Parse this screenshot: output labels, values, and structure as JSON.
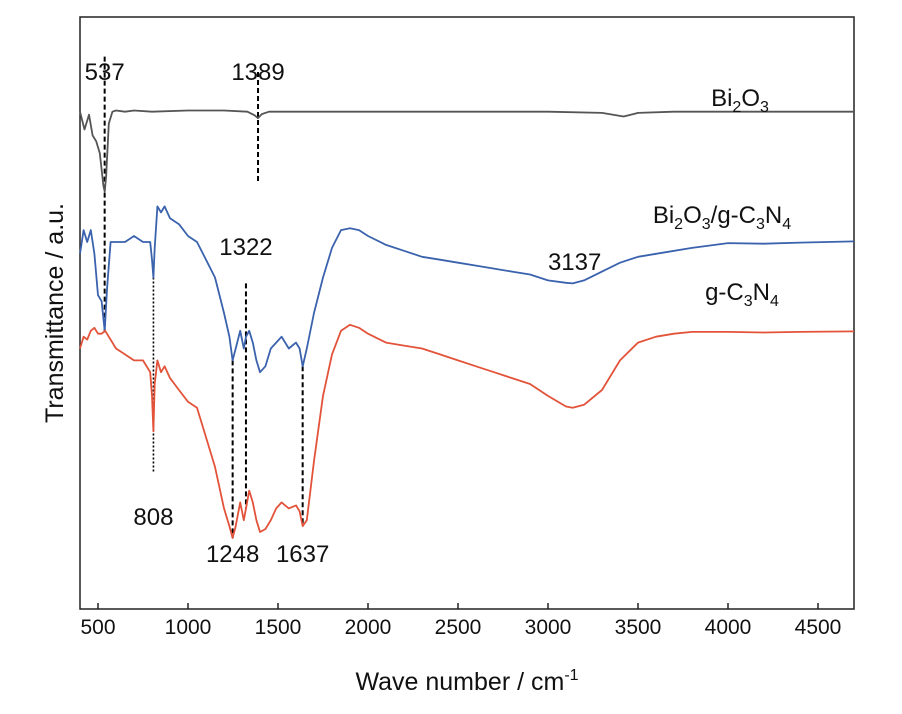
{
  "chart_data": {
    "type": "line",
    "title": "",
    "xlabel": "Wave number / cm",
    "xlabel_superscript": "-1",
    "ylabel": "Transmittance / a.u.",
    "xlim": [
      400,
      4700
    ],
    "ylim": [
      0,
      1
    ],
    "x_ticks": [
      500,
      1000,
      1500,
      2000,
      2500,
      3000,
      3500,
      4000,
      4500
    ],
    "y_ticks_shown": false,
    "grid": false,
    "legend": "none",
    "series": [
      {
        "name": "Bi2O3",
        "label": [
          [
            "Bi",
            ""
          ],
          [
            "2",
            "sub"
          ],
          [
            "O",
            ""
          ],
          [
            "3",
            "sub"
          ]
        ],
        "color": "#555555",
        "points": [
          [
            400,
            0.84
          ],
          [
            425,
            0.81
          ],
          [
            450,
            0.835
          ],
          [
            470,
            0.8
          ],
          [
            490,
            0.79
          ],
          [
            510,
            0.77
          ],
          [
            530,
            0.715
          ],
          [
            537,
            0.705
          ],
          [
            545,
            0.73
          ],
          [
            560,
            0.82
          ],
          [
            580,
            0.84
          ],
          [
            600,
            0.842
          ],
          [
            650,
            0.84
          ],
          [
            700,
            0.842
          ],
          [
            800,
            0.84
          ],
          [
            1000,
            0.842
          ],
          [
            1200,
            0.842
          ],
          [
            1330,
            0.84
          ],
          [
            1370,
            0.834
          ],
          [
            1389,
            0.829
          ],
          [
            1410,
            0.836
          ],
          [
            1450,
            0.84
          ],
          [
            1600,
            0.84
          ],
          [
            2000,
            0.84
          ],
          [
            2500,
            0.84
          ],
          [
            3000,
            0.84
          ],
          [
            3300,
            0.838
          ],
          [
            3420,
            0.832
          ],
          [
            3500,
            0.838
          ],
          [
            3700,
            0.84
          ],
          [
            4000,
            0.84
          ],
          [
            4700,
            0.84
          ]
        ]
      },
      {
        "name": "Bi2O3/g-C3N4",
        "label": [
          [
            "Bi",
            ""
          ],
          [
            "2",
            "sub"
          ],
          [
            "O",
            ""
          ],
          [
            "3",
            "sub"
          ],
          [
            "/g-C",
            ""
          ],
          [
            "3",
            "sub"
          ],
          [
            "N",
            ""
          ],
          [
            "4",
            "sub"
          ]
        ],
        "color": "#3a62ad",
        "points": [
          [
            400,
            0.6
          ],
          [
            420,
            0.64
          ],
          [
            440,
            0.62
          ],
          [
            460,
            0.64
          ],
          [
            480,
            0.6
          ],
          [
            500,
            0.53
          ],
          [
            520,
            0.52
          ],
          [
            537,
            0.47
          ],
          [
            550,
            0.54
          ],
          [
            570,
            0.62
          ],
          [
            600,
            0.62
          ],
          [
            650,
            0.62
          ],
          [
            700,
            0.63
          ],
          [
            750,
            0.62
          ],
          [
            790,
            0.62
          ],
          [
            800,
            0.59
          ],
          [
            808,
            0.56
          ],
          [
            815,
            0.61
          ],
          [
            830,
            0.68
          ],
          [
            850,
            0.67
          ],
          [
            870,
            0.68
          ],
          [
            900,
            0.66
          ],
          [
            950,
            0.65
          ],
          [
            1000,
            0.63
          ],
          [
            1050,
            0.62
          ],
          [
            1100,
            0.59
          ],
          [
            1150,
            0.56
          ],
          [
            1200,
            0.5
          ],
          [
            1230,
            0.46
          ],
          [
            1248,
            0.42
          ],
          [
            1265,
            0.44
          ],
          [
            1290,
            0.47
          ],
          [
            1310,
            0.44
          ],
          [
            1322,
            0.46
          ],
          [
            1340,
            0.47
          ],
          [
            1360,
            0.45
          ],
          [
            1380,
            0.42
          ],
          [
            1400,
            0.4
          ],
          [
            1430,
            0.41
          ],
          [
            1460,
            0.44
          ],
          [
            1490,
            0.45
          ],
          [
            1520,
            0.46
          ],
          [
            1560,
            0.44
          ],
          [
            1600,
            0.45
          ],
          [
            1620,
            0.44
          ],
          [
            1637,
            0.41
          ],
          [
            1660,
            0.44
          ],
          [
            1700,
            0.5
          ],
          [
            1750,
            0.56
          ],
          [
            1800,
            0.61
          ],
          [
            1850,
            0.64
          ],
          [
            1900,
            0.643
          ],
          [
            1950,
            0.64
          ],
          [
            2000,
            0.63
          ],
          [
            2100,
            0.615
          ],
          [
            2200,
            0.605
          ],
          [
            2300,
            0.595
          ],
          [
            2400,
            0.59
          ],
          [
            2500,
            0.585
          ],
          [
            2600,
            0.58
          ],
          [
            2700,
            0.575
          ],
          [
            2800,
            0.57
          ],
          [
            2900,
            0.565
          ],
          [
            3000,
            0.555
          ],
          [
            3100,
            0.551
          ],
          [
            3137,
            0.55
          ],
          [
            3200,
            0.555
          ],
          [
            3300,
            0.57
          ],
          [
            3400,
            0.585
          ],
          [
            3500,
            0.595
          ],
          [
            3600,
            0.6
          ],
          [
            3800,
            0.61
          ],
          [
            4000,
            0.618
          ],
          [
            4200,
            0.617
          ],
          [
            4400,
            0.619
          ],
          [
            4700,
            0.621
          ]
        ]
      },
      {
        "name": "g-C3N4",
        "label": [
          [
            "g-C",
            ""
          ],
          [
            "3",
            "sub"
          ],
          [
            "N",
            ""
          ],
          [
            "4",
            "sub"
          ]
        ],
        "color": "#e2533a",
        "points": [
          [
            400,
            0.44
          ],
          [
            420,
            0.46
          ],
          [
            440,
            0.455
          ],
          [
            460,
            0.47
          ],
          [
            480,
            0.475
          ],
          [
            500,
            0.465
          ],
          [
            520,
            0.465
          ],
          [
            540,
            0.47
          ],
          [
            560,
            0.46
          ],
          [
            600,
            0.44
          ],
          [
            650,
            0.43
          ],
          [
            700,
            0.42
          ],
          [
            750,
            0.42
          ],
          [
            790,
            0.4
          ],
          [
            800,
            0.36
          ],
          [
            808,
            0.3
          ],
          [
            815,
            0.38
          ],
          [
            830,
            0.42
          ],
          [
            850,
            0.4
          ],
          [
            870,
            0.41
          ],
          [
            900,
            0.39
          ],
          [
            950,
            0.37
          ],
          [
            1000,
            0.35
          ],
          [
            1050,
            0.34
          ],
          [
            1100,
            0.29
          ],
          [
            1150,
            0.24
          ],
          [
            1200,
            0.17
          ],
          [
            1230,
            0.14
          ],
          [
            1248,
            0.12
          ],
          [
            1265,
            0.14
          ],
          [
            1290,
            0.18
          ],
          [
            1310,
            0.15
          ],
          [
            1322,
            0.17
          ],
          [
            1340,
            0.2
          ],
          [
            1360,
            0.18
          ],
          [
            1380,
            0.15
          ],
          [
            1400,
            0.13
          ],
          [
            1430,
            0.135
          ],
          [
            1460,
            0.15
          ],
          [
            1490,
            0.17
          ],
          [
            1520,
            0.18
          ],
          [
            1560,
            0.17
          ],
          [
            1600,
            0.175
          ],
          [
            1620,
            0.165
          ],
          [
            1637,
            0.14
          ],
          [
            1660,
            0.15
          ],
          [
            1700,
            0.25
          ],
          [
            1750,
            0.36
          ],
          [
            1800,
            0.43
          ],
          [
            1850,
            0.47
          ],
          [
            1900,
            0.48
          ],
          [
            1950,
            0.475
          ],
          [
            2000,
            0.465
          ],
          [
            2100,
            0.45
          ],
          [
            2200,
            0.445
          ],
          [
            2300,
            0.44
          ],
          [
            2400,
            0.43
          ],
          [
            2500,
            0.42
          ],
          [
            2600,
            0.41
          ],
          [
            2700,
            0.4
          ],
          [
            2800,
            0.39
          ],
          [
            2900,
            0.38
          ],
          [
            3000,
            0.36
          ],
          [
            3100,
            0.342
          ],
          [
            3137,
            0.34
          ],
          [
            3200,
            0.345
          ],
          [
            3300,
            0.37
          ],
          [
            3400,
            0.42
          ],
          [
            3500,
            0.45
          ],
          [
            3600,
            0.46
          ],
          [
            3700,
            0.465
          ],
          [
            3800,
            0.468
          ],
          [
            4000,
            0.468
          ],
          [
            4200,
            0.467
          ],
          [
            4400,
            0.468
          ],
          [
            4700,
            0.469
          ]
        ]
      }
    ],
    "annotations": [
      {
        "text": "537",
        "x": 537
      },
      {
        "text": "1389",
        "x": 1389
      },
      {
        "text": "808",
        "x": 808
      },
      {
        "text": "1322",
        "x": 1322
      },
      {
        "text": "1248",
        "x": 1248
      },
      {
        "text": "1637",
        "x": 1637
      },
      {
        "text": "3137",
        "x": 3137
      }
    ]
  }
}
